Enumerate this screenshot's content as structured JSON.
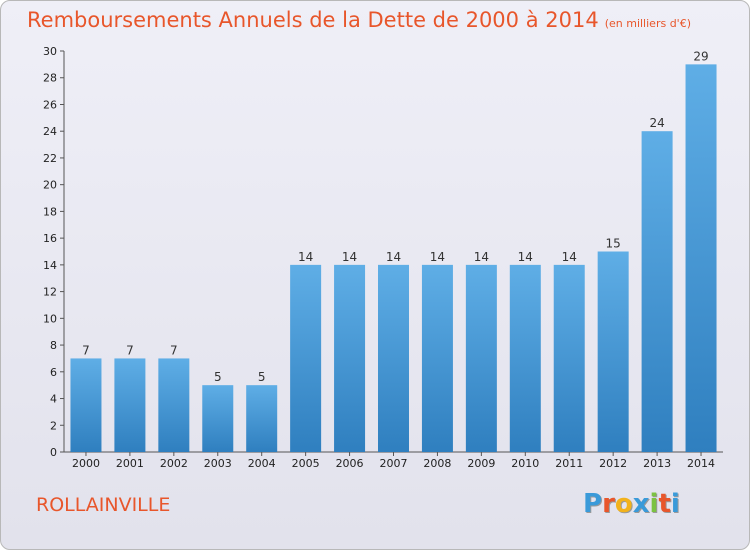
{
  "header": {
    "title": "Remboursements Annuels de la Dette de 2000 à 2014",
    "subtitle": "(en milliers d'€)"
  },
  "footer": {
    "town": "ROLLAINVILLE",
    "logo_letters": [
      {
        "char": "P",
        "color": "#3a9ad9"
      },
      {
        "char": "r",
        "color": "#e8562b"
      },
      {
        "char": "o",
        "color": "#f2b21c"
      },
      {
        "char": "x",
        "color": "#3a9ad9"
      },
      {
        "char": "i",
        "color": "#7cc242"
      },
      {
        "char": "t",
        "color": "#e8562b"
      },
      {
        "char": "i",
        "color": "#3a9ad9"
      }
    ]
  },
  "colors": {
    "bar_top": "#5faee6",
    "bar_bottom": "#2f7fbf",
    "accent": "#e8562b"
  },
  "chart_data": {
    "type": "bar",
    "categories": [
      "2000",
      "2001",
      "2002",
      "2003",
      "2004",
      "2005",
      "2006",
      "2007",
      "2008",
      "2009",
      "2010",
      "2011",
      "2012",
      "2013",
      "2014"
    ],
    "values": [
      7,
      7,
      7,
      5,
      5,
      14,
      14,
      14,
      14,
      14,
      14,
      14,
      15,
      24,
      29
    ],
    "title": "Remboursements Annuels de la Dette de 2000 à 2014",
    "subtitle": "(en milliers d'€)",
    "ylim": [
      0,
      30
    ],
    "yticks": [
      0,
      2,
      4,
      6,
      8,
      10,
      12,
      14,
      16,
      18,
      20,
      22,
      24,
      26,
      28,
      30
    ],
    "grid": false,
    "data_labels": true
  }
}
